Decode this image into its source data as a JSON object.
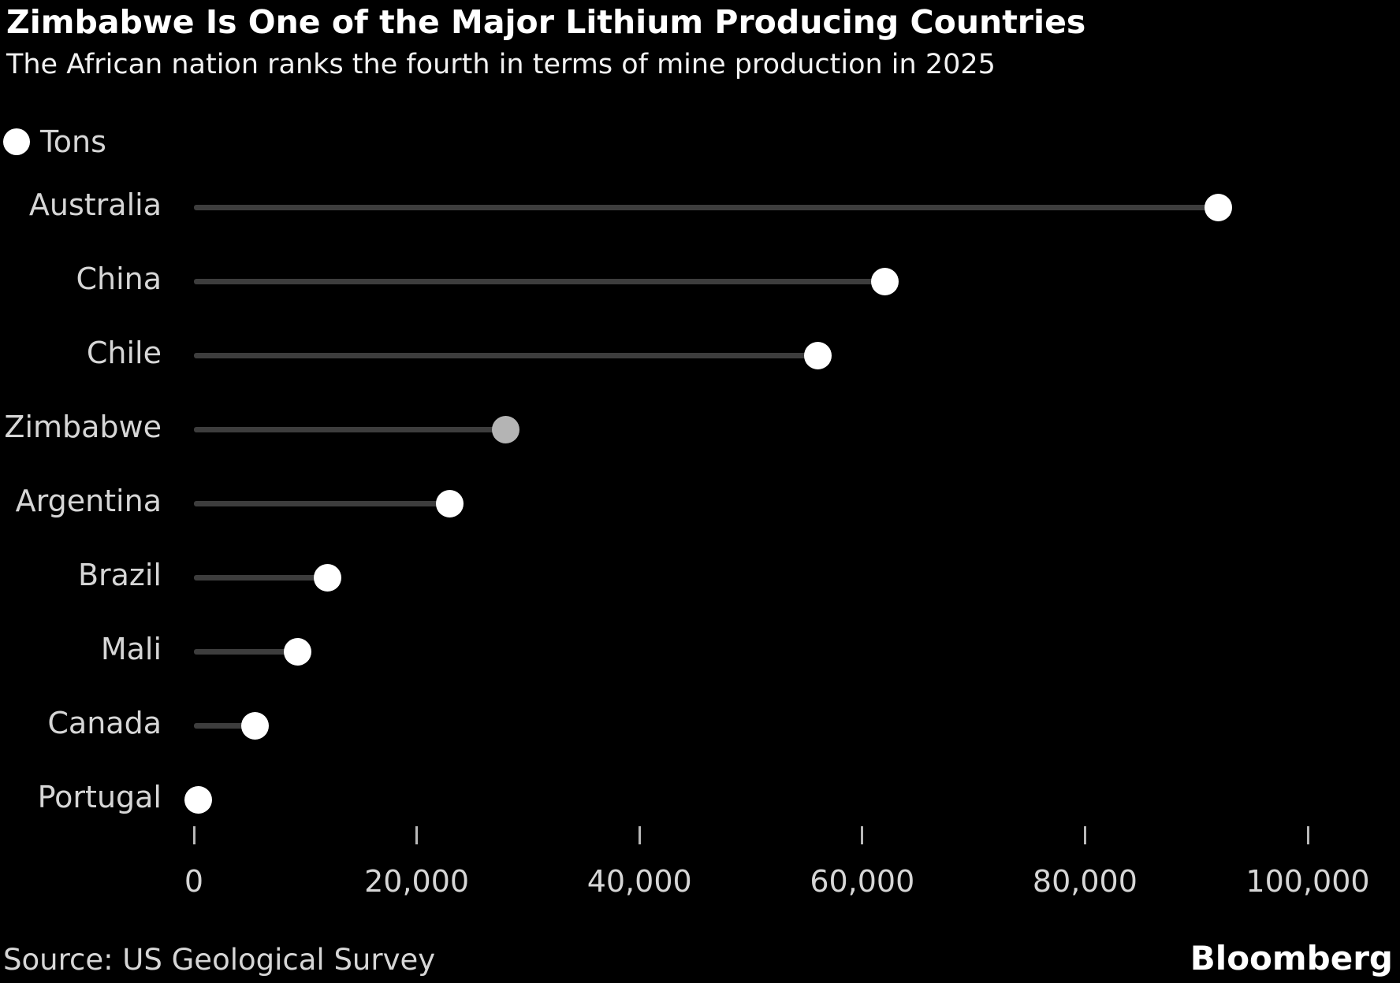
{
  "header": {
    "title": "Zimbabwe Is One of the Major Lithium Producing Countries",
    "subtitle": "The African nation ranks the fourth in terms of mine production in 2025"
  },
  "legend": {
    "label": "Tons"
  },
  "chart_data": {
    "type": "bar",
    "variant": "horizontal-lollipop",
    "title": "Zimbabwe Is One of the Major Lithium Producing Countries",
    "subtitle": "The African nation ranks the fourth in terms of mine production in 2025",
    "unit": "Tons",
    "categories": [
      "Australia",
      "China",
      "Chile",
      "Zimbabwe",
      "Argentina",
      "Brazil",
      "Mali",
      "Canada",
      "Portugal"
    ],
    "values": [
      92000,
      62000,
      56000,
      28000,
      23000,
      12000,
      9300,
      5500,
      380
    ],
    "highlight_category": "Zimbabwe",
    "xlabel": "",
    "ylabel": "",
    "xlim": [
      0,
      108000
    ],
    "x_ticks": [
      0,
      20000,
      40000,
      60000,
      80000,
      100000
    ],
    "x_tick_labels": [
      "0",
      "20,000",
      "40,000",
      "60,000",
      "80,000",
      "100,000"
    ],
    "grid": false,
    "legend_position": "top-left",
    "colors": {
      "background": "#000000",
      "dot": "#ffffff",
      "highlight_dot": "#b4b4b4",
      "line": "#3d3d3d",
      "tick": "#b8b8b8",
      "label": "#d6d6d6"
    }
  },
  "footer": {
    "source": "Source: US Geological Survey",
    "brand": "Bloomberg"
  }
}
